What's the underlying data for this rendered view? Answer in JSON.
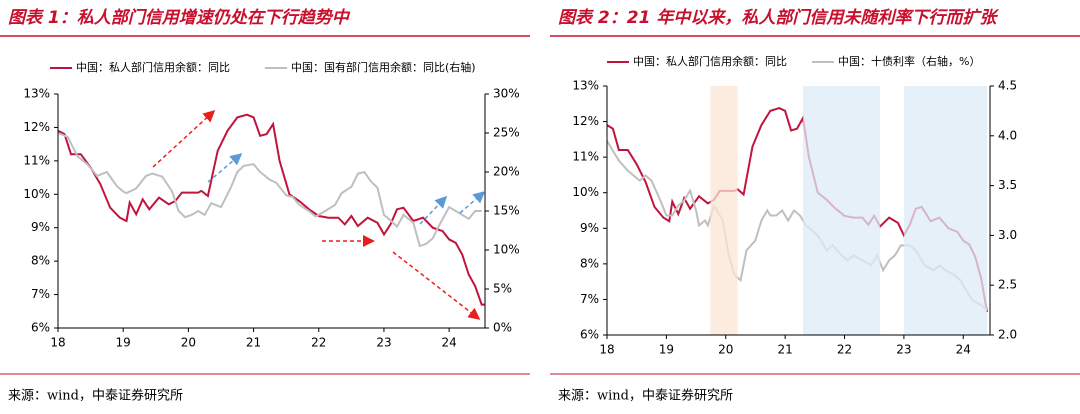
{
  "chart_data": [
    {
      "type": "line",
      "title": "图表 1：私人部门信用增速仍处在下行趋势中",
      "source": "来源：wind，中泰证券研究所",
      "xlim": [
        18,
        24.55
      ],
      "xticks": [
        18,
        19,
        20,
        21,
        22,
        23,
        24
      ],
      "ylim": [
        6,
        13
      ],
      "yticks": [
        {
          "value": 6,
          "label": "6%"
        },
        {
          "value": 7,
          "label": "7%"
        },
        {
          "value": 8,
          "label": "8%"
        },
        {
          "value": 9,
          "label": "9%"
        },
        {
          "value": 10,
          "label": "10%"
        },
        {
          "value": 11,
          "label": "11%"
        },
        {
          "value": 12,
          "label": "12%"
        },
        {
          "value": 13,
          "label": "13%"
        }
      ],
      "y2lim": [
        0,
        30
      ],
      "y2ticks": [
        {
          "value": 0,
          "label": "0%"
        },
        {
          "value": 5,
          "label": "5%"
        },
        {
          "value": 10,
          "label": "10%"
        },
        {
          "value": 15,
          "label": "15%"
        },
        {
          "value": 20,
          "label": "20%"
        },
        {
          "value": 25,
          "label": "25%"
        },
        {
          "value": 30,
          "label": "30%"
        }
      ],
      "series": [
        {
          "name": "中国：私人部门信用余额：同比",
          "color": "#c0143c",
          "x": [
            18.0,
            18.1,
            18.2,
            18.35,
            18.5,
            18.65,
            18.8,
            18.95,
            19.05,
            19.1,
            19.2,
            19.3,
            19.4,
            19.55,
            19.7,
            19.8,
            19.9,
            20.0,
            20.15,
            20.2,
            20.3,
            20.45,
            20.6,
            20.75,
            20.9,
            21.0,
            21.1,
            21.2,
            21.3,
            21.4,
            21.55,
            21.7,
            21.85,
            22.0,
            22.15,
            22.3,
            22.4,
            22.5,
            22.6,
            22.75,
            22.9,
            23.0,
            23.1,
            23.2,
            23.3,
            23.45,
            23.6,
            23.75,
            23.9,
            24.0,
            24.1,
            24.2,
            24.3,
            24.4,
            24.5,
            24.55
          ],
          "values": [
            11.9,
            11.8,
            11.2,
            11.2,
            10.8,
            10.3,
            9.6,
            9.3,
            9.2,
            9.75,
            9.4,
            9.85,
            9.55,
            9.9,
            9.7,
            9.8,
            10.05,
            10.05,
            10.05,
            10.1,
            9.95,
            11.3,
            11.9,
            12.3,
            12.38,
            12.3,
            11.75,
            11.8,
            12.1,
            11.0,
            10.0,
            9.8,
            9.55,
            9.35,
            9.3,
            9.3,
            9.1,
            9.35,
            9.05,
            9.3,
            9.15,
            8.8,
            9.1,
            9.55,
            9.6,
            9.2,
            9.3,
            9.0,
            8.9,
            8.65,
            8.55,
            8.2,
            7.6,
            7.25,
            6.7,
            6.7
          ]
        },
        {
          "name": "中国：国有部门信用余额：同比(右轴)",
          "color": "#bfbfbf",
          "axis": "y2",
          "x": [
            18.0,
            18.15,
            18.3,
            18.45,
            18.6,
            18.75,
            18.9,
            19.0,
            19.05,
            19.2,
            19.35,
            19.45,
            19.6,
            19.75,
            19.85,
            19.95,
            20.05,
            20.15,
            20.25,
            20.35,
            20.5,
            20.65,
            20.75,
            20.85,
            21.0,
            21.1,
            21.25,
            21.35,
            21.5,
            21.6,
            21.7,
            21.85,
            21.95,
            22.1,
            22.25,
            22.35,
            22.5,
            22.6,
            22.7,
            22.8,
            22.9,
            23.0,
            23.1,
            23.2,
            23.3,
            23.45,
            23.55,
            23.65,
            23.75,
            23.85,
            24.0,
            24.1,
            24.2,
            24.3,
            24.4,
            24.5
          ],
          "values": [
            25,
            24.5,
            22,
            21,
            19.5,
            20,
            18.2,
            17.5,
            17.3,
            17.9,
            19.5,
            19.8,
            19.4,
            17.5,
            15,
            14.2,
            14.5,
            15,
            14.5,
            16,
            15.5,
            18,
            20,
            20.8,
            21,
            20,
            19,
            18.6,
            17,
            16.8,
            15.8,
            15,
            14.3,
            15,
            15.8,
            17.3,
            18.1,
            19.8,
            20,
            18.8,
            18,
            14.5,
            13.8,
            13,
            14.5,
            13.5,
            10.5,
            10.8,
            11.5,
            13.2,
            15.5,
            15,
            14.5,
            14,
            15,
            15
          ]
        }
      ]
    },
    {
      "type": "line",
      "title": "图表 2：21 年中以来，私人部门信用未随利率下行而扩张",
      "source": "来源：wind，中泰证券研究所",
      "xlim": [
        18,
        24.45
      ],
      "xticks": [
        18,
        19,
        20,
        21,
        22,
        23,
        24
      ],
      "ylim": [
        6,
        13
      ],
      "yticks": [
        {
          "value": 6,
          "label": "6%"
        },
        {
          "value": 7,
          "label": "7%"
        },
        {
          "value": 8,
          "label": "8%"
        },
        {
          "value": 9,
          "label": "9%"
        },
        {
          "value": 10,
          "label": "10%"
        },
        {
          "value": 11,
          "label": "11%"
        },
        {
          "value": 12,
          "label": "12%"
        },
        {
          "value": 13,
          "label": "13%"
        }
      ],
      "y2lim": [
        2,
        4.5
      ],
      "y2ticks": [
        {
          "value": 2,
          "label": "2.0"
        },
        2.5,
        {
          "value": 3,
          "label": "3.0"
        },
        3.5,
        {
          "value": 4,
          "label": "4.0"
        },
        4.5
      ],
      "shaded_regions": [
        {
          "x": [
            19.74,
            20.2
          ],
          "color": "#fbe5d6"
        },
        {
          "x": [
            21.3,
            22.6
          ],
          "color": "#deebf7"
        },
        {
          "x": [
            23.0,
            24.4
          ],
          "color": "#deebf7"
        }
      ],
      "series": [
        {
          "name": "中国：私人部门信用余额：同比",
          "color": "#c0143c",
          "x": [
            18.0,
            18.1,
            18.2,
            18.35,
            18.5,
            18.65,
            18.8,
            18.95,
            19.05,
            19.1,
            19.2,
            19.3,
            19.4,
            19.55,
            19.7,
            19.8,
            19.9,
            20.0,
            20.15,
            20.2,
            20.3,
            20.45,
            20.6,
            20.75,
            20.9,
            21.0,
            21.1,
            21.2,
            21.3,
            21.4,
            21.55,
            21.7,
            21.85,
            22.0,
            22.15,
            22.3,
            22.4,
            22.5,
            22.6,
            22.75,
            22.9,
            23.0,
            23.1,
            23.2,
            23.3,
            23.45,
            23.6,
            23.75,
            23.9,
            24.0,
            24.1,
            24.2,
            24.3,
            24.4
          ],
          "values": [
            11.9,
            11.8,
            11.2,
            11.2,
            10.8,
            10.3,
            9.6,
            9.3,
            9.2,
            9.75,
            9.4,
            9.85,
            9.55,
            9.9,
            9.7,
            9.8,
            10.05,
            10.05,
            10.05,
            10.1,
            9.95,
            11.3,
            11.9,
            12.3,
            12.38,
            12.3,
            11.75,
            11.8,
            12.1,
            11.0,
            10.0,
            9.8,
            9.55,
            9.35,
            9.3,
            9.3,
            9.1,
            9.35,
            9.05,
            9.3,
            9.15,
            8.8,
            9.1,
            9.55,
            9.6,
            9.2,
            9.3,
            9.0,
            8.9,
            8.65,
            8.55,
            8.2,
            7.6,
            6.65
          ]
        },
        {
          "name": "中国：十债利率（右轴，%）",
          "color": "#bfbfbf",
          "axis": "y2",
          "x": [
            18.0,
            18.1,
            18.2,
            18.35,
            18.45,
            18.55,
            18.65,
            18.75,
            18.9,
            19.0,
            19.1,
            19.2,
            19.3,
            19.4,
            19.5,
            19.55,
            19.65,
            19.7,
            19.8,
            19.95,
            20.05,
            20.15,
            20.25,
            20.35,
            20.5,
            20.6,
            20.7,
            20.75,
            20.85,
            20.95,
            21.05,
            21.15,
            21.25,
            21.35,
            21.45,
            21.55,
            21.7,
            21.8,
            21.95,
            22.05,
            22.15,
            22.3,
            22.45,
            22.55,
            22.65,
            22.75,
            22.85,
            22.95,
            23.1,
            23.2,
            23.35,
            23.5,
            23.6,
            23.7,
            23.85,
            23.95,
            24.05,
            24.15,
            24.3,
            24.4
          ],
          "values": [
            3.95,
            3.85,
            3.75,
            3.65,
            3.6,
            3.55,
            3.6,
            3.55,
            3.35,
            3.2,
            3.2,
            3.3,
            3.35,
            3.45,
            3.25,
            3.1,
            3.15,
            3.1,
            3.3,
            3.15,
            2.8,
            2.6,
            2.55,
            2.85,
            2.95,
            3.15,
            3.25,
            3.2,
            3.2,
            3.25,
            3.15,
            3.25,
            3.2,
            3.1,
            3.05,
            3.0,
            2.85,
            2.9,
            2.8,
            2.75,
            2.8,
            2.75,
            2.7,
            2.8,
            2.65,
            2.75,
            2.8,
            2.9,
            2.9,
            2.85,
            2.7,
            2.65,
            2.7,
            2.65,
            2.6,
            2.55,
            2.45,
            2.35,
            2.3,
            2.25
          ]
        }
      ]
    }
  ]
}
